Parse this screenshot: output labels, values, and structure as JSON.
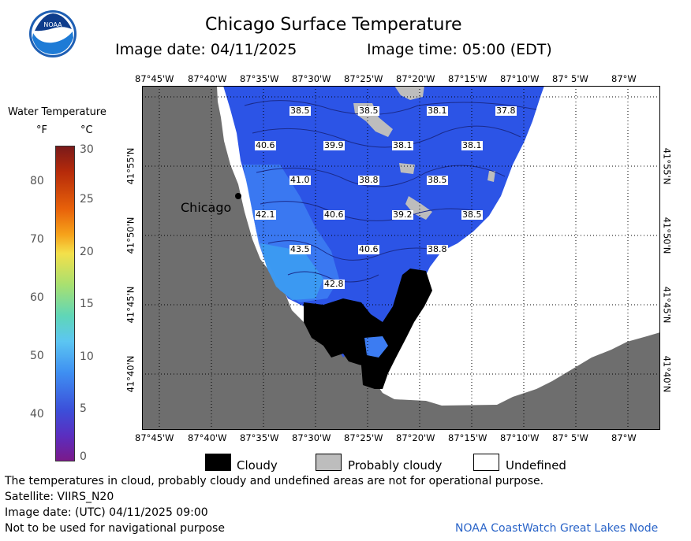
{
  "header": {
    "title": "Chicago Surface Temperature",
    "image_date": "Image date: 04/11/2025",
    "image_time": "Image time: 05:00 (EDT)"
  },
  "logo": {
    "text": "NOAA"
  },
  "colorbar": {
    "title": "Water Temperature",
    "unit_f": "°F",
    "unit_c": "°C",
    "f_ticks": [
      "80",
      "70",
      "60",
      "50",
      "40"
    ],
    "c_ticks": [
      "30",
      "25",
      "20",
      "15",
      "10",
      "5",
      "0"
    ],
    "colors": [
      "#7a1a1a",
      "#b52a0a",
      "#e8620a",
      "#f6a21a",
      "#f4e04a",
      "#a8e070",
      "#5fd6b8",
      "#5cc6f2",
      "#3e8ff2",
      "#3c4fd9",
      "#5a2ec0",
      "#7a1a8a"
    ]
  },
  "map": {
    "top_lon_labels": [
      "87°45'W",
      "87°40'W",
      "87°35'W",
      "87°30'W",
      "87°25'W",
      "87°20'W",
      "87°15'W",
      "87°10'W",
      "87° 5'W",
      "87°W"
    ],
    "bottom_lon_labels": [
      "87°45'W",
      "87°40'W",
      "87°35'W",
      "87°30'W",
      "87°25'W",
      "87°20'W",
      "87°15'W",
      "87°10'W",
      "87° 5'W",
      "87°W"
    ],
    "lat_labels": [
      "41°55'N",
      "41°50'N",
      "41°45'N",
      "41°40'N"
    ],
    "city": "Chicago",
    "temperatures": [
      "38.5",
      "38.5",
      "38.1",
      "37.8",
      "40.6",
      "39.9",
      "38.1",
      "38.1",
      "41.0",
      "38.8",
      "38.5",
      "42.1",
      "40.6",
      "39.2",
      "38.5",
      "43.5",
      "40.6",
      "38.8",
      "42.8"
    ],
    "colors": {
      "land": "#6e6e6e",
      "cloudy": "#000000",
      "probably_cloudy": "#bdbdbd",
      "water_cold": "#2c54e6",
      "water_mid": "#3c6cf0",
      "water_warm": "#3c9cf2"
    }
  },
  "legend": {
    "cloudy": "Cloudy",
    "probably_cloudy": "Probably cloudy",
    "undefined": "Undefined"
  },
  "footer": {
    "disclaimer": "The temperatures in cloud, probably cloudy and undefined areas are not for operational purpose.",
    "satellite": "Satellite: VIIRS_N20",
    "utc_date": "Image date: (UTC) 04/11/2025  09:00",
    "nav_note": "Not to be used for navigational purpose",
    "credit": "NOAA CoastWatch Great Lakes Node"
  }
}
